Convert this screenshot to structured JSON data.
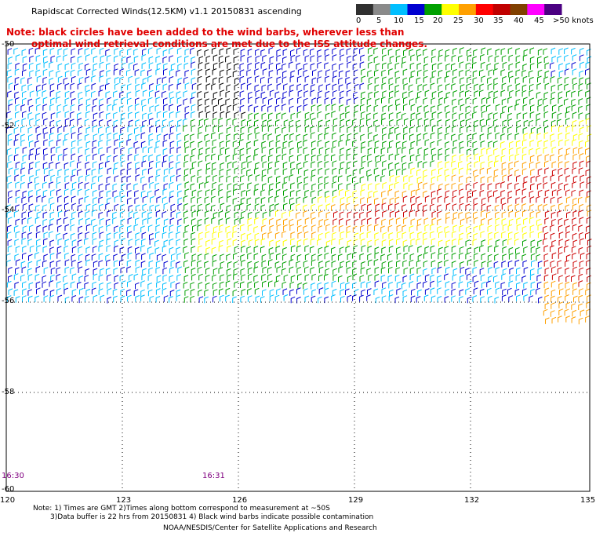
{
  "title": "Rapidscat Corrected Winds(12.5KM) v1.1 20150831 ascending",
  "note": {
    "line1": "Note: black circles have been added to the wind barbs, wherever less than",
    "line2": "optimal wind retrieval conditions are met due to the ISS attitude changes."
  },
  "colorbar": {
    "labels": [
      "0",
      "5",
      "10",
      "15",
      "20",
      "25",
      "30",
      "35",
      "40",
      "45",
      ">50 knots"
    ],
    "colors": [
      "#303030",
      "#8a8a8a",
      "#00bfff",
      "#0000d0",
      "#00a000",
      "#ffff00",
      "#ffa000",
      "#ff0000",
      "#c00000",
      "#804000",
      "#ff00ff",
      "#4b0082"
    ]
  },
  "lat_labels": [
    "-50",
    "-52",
    "-54",
    "-56",
    "-58",
    "-60"
  ],
  "lon_labels": [
    "120",
    "123",
    "126",
    "129",
    "132",
    "135"
  ],
  "times": [
    "16:30",
    "16:31"
  ],
  "footer": {
    "line1": "Note: 1) Times are GMT 2)Times along bottom correspond to measurement at ~50S",
    "line2": "3)Data buffer is 22 hrs from 20150831 4) Black wind barbs indicate possible contamination",
    "line3": "NOAA/NESDIS/Center for Satellite Applications and Research"
  },
  "map": {
    "lon_range": [
      120,
      135
    ],
    "lat_range": [
      -60,
      -50
    ],
    "grid": "dotted",
    "barb_colors": {
      "light_blue": "#00bfff",
      "blue": "#0000d0",
      "green": "#00a000",
      "yellow": "#ffff00",
      "orange": "#ffa000",
      "red": "#cc0000",
      "black": "#000000"
    }
  }
}
